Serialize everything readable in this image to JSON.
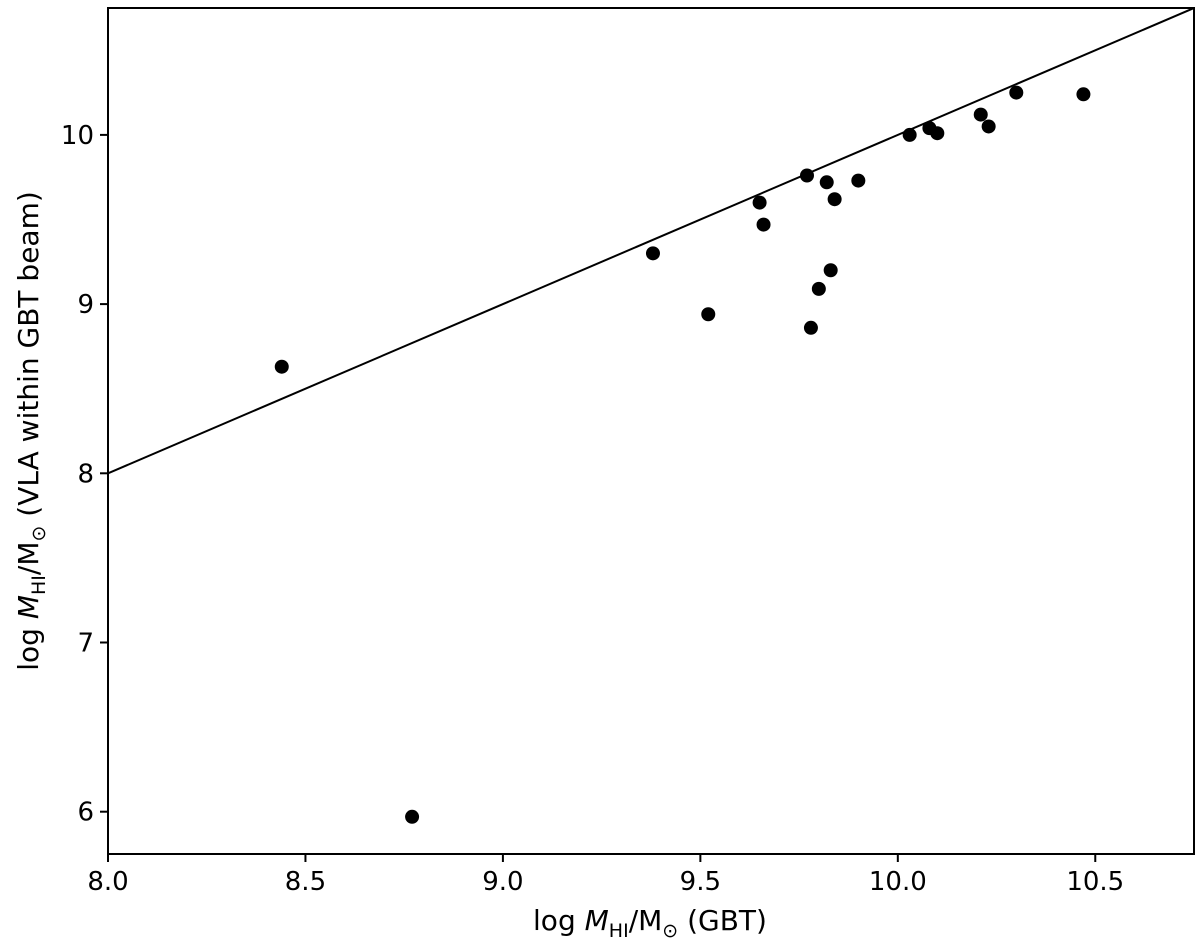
{
  "chart_data": {
    "type": "scatter",
    "title": "",
    "xlabel": {
      "prefix": "log ",
      "var": "M",
      "sub": "HI",
      "mid": "/M",
      "odot": "⊙",
      "suffix": " (GBT)"
    },
    "ylabel": {
      "prefix": "log ",
      "var": "M",
      "sub": "HI",
      "mid": "/M",
      "odot": "⊙",
      "suffix": " (VLA within GBT beam)"
    },
    "xlim": [
      8.0,
      10.75
    ],
    "ylim": [
      5.75,
      10.75
    ],
    "xticks": [
      8.0,
      8.5,
      9.0,
      9.5,
      10.0,
      10.5
    ],
    "xtick_labels": [
      "8.0",
      "8.5",
      "9.0",
      "9.5",
      "10.0",
      "10.5"
    ],
    "yticks": [
      6,
      7,
      8,
      9,
      10
    ],
    "ytick_labels": [
      "6",
      "7",
      "8",
      "9",
      "10"
    ],
    "grid": false,
    "reference_line": {
      "kind": "one-to-one",
      "x": [
        8.0,
        10.75
      ],
      "y": [
        8.0,
        10.75
      ]
    },
    "points": [
      {
        "x": 8.44,
        "y": 8.63
      },
      {
        "x": 8.77,
        "y": 5.97
      },
      {
        "x": 9.38,
        "y": 9.3
      },
      {
        "x": 9.52,
        "y": 8.94
      },
      {
        "x": 9.65,
        "y": 9.6
      },
      {
        "x": 9.66,
        "y": 9.47
      },
      {
        "x": 9.77,
        "y": 9.76
      },
      {
        "x": 9.78,
        "y": 8.86
      },
      {
        "x": 9.8,
        "y": 9.09
      },
      {
        "x": 9.82,
        "y": 9.72
      },
      {
        "x": 9.83,
        "y": 9.2
      },
      {
        "x": 9.84,
        "y": 9.62
      },
      {
        "x": 9.9,
        "y": 9.73
      },
      {
        "x": 10.03,
        "y": 10.0
      },
      {
        "x": 10.08,
        "y": 10.04
      },
      {
        "x": 10.1,
        "y": 10.01
      },
      {
        "x": 10.21,
        "y": 10.12
      },
      {
        "x": 10.23,
        "y": 10.05
      },
      {
        "x": 10.3,
        "y": 10.25
      },
      {
        "x": 10.47,
        "y": 10.24
      }
    ],
    "colors": {
      "points": "#000000",
      "line": "#000000",
      "axes": "#000000"
    }
  }
}
